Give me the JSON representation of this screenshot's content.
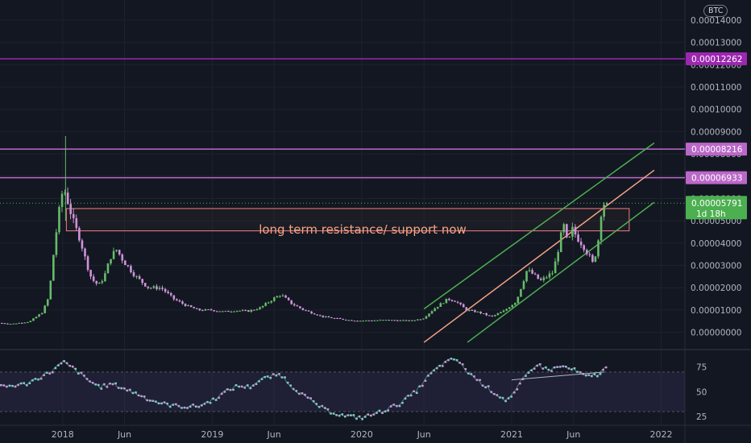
{
  "header": {
    "currency": "BTC"
  },
  "colors": {
    "background": "#131722",
    "grid": "#1e222d",
    "up": "#66bb6a",
    "down": "#ce93d8",
    "purple_line": "#9c27b0",
    "violet_line": "#ba68c8",
    "channel": "#4caf50",
    "midline": "#f4a383",
    "rsi_line": "#80cbc4"
  },
  "chart_data": [
    {
      "type": "candlestick",
      "title": "",
      "y_unit": "BTC",
      "ylim": [
        -7e-06,
        0.000149
      ],
      "x_range": [
        "2017-08-01",
        "2022-02-28"
      ],
      "y_ticks": [
        "0.00000000",
        "0.00001000",
        "0.00002000",
        "0.00003000",
        "0.00004000",
        "0.00005000",
        "0.00006000",
        "0.00007000",
        "0.00008000",
        "0.00009000",
        "0.00010000",
        "0.00011000",
        "0.00012000",
        "0.00013000",
        "0.00014000"
      ],
      "y_tick_values": [
        0,
        1e-05,
        2e-05,
        3e-05,
        4e-05,
        5e-05,
        6e-05,
        7e-05,
        8e-05,
        9e-05,
        0.0001,
        0.00011,
        0.00012,
        0.00013,
        0.00014
      ],
      "x_ticks": [
        {
          "label": "2018",
          "date": "2018-01-01"
        },
        {
          "label": "Jun",
          "date": "2018-06-01"
        },
        {
          "label": "2019",
          "date": "2019-01-01"
        },
        {
          "label": "Jun",
          "date": "2019-06-01"
        },
        {
          "label": "2020",
          "date": "2020-01-01"
        },
        {
          "label": "Jun",
          "date": "2020-06-01"
        },
        {
          "label": "2021",
          "date": "2021-01-01"
        },
        {
          "label": "Jun",
          "date": "2021-06-01"
        },
        {
          "label": "2022",
          "date": "2022-01-01"
        }
      ],
      "horizontal_levels": [
        {
          "value": 0.00012262,
          "label": "0.00012262",
          "color": "#9c27b0"
        },
        {
          "value": 8.216e-05,
          "label": "0.00008216",
          "color": "#ba68c8"
        },
        {
          "value": 6.933e-05,
          "label": "0.00006933",
          "color": "#ba68c8"
        }
      ],
      "last_price": {
        "value": 5.791e-05,
        "label": "0.00005791",
        "countdown": "1d 18h",
        "color": "#4caf50"
      },
      "zone": {
        "start": "2018-01-10",
        "end": "2021-10-15",
        "top": 5.55e-05,
        "bottom": 4.55e-05
      },
      "annotation": "long term resistance/ support now",
      "channel_lines": [
        {
          "name": "upper",
          "color": "#4caf50",
          "points": [
            [
              "2020-06-01",
              1.05e-05
            ],
            [
              "2021-12-15",
              8.49e-05
            ]
          ]
        },
        {
          "name": "middle",
          "color": "#f4a383",
          "points": [
            [
              "2020-06-01",
              -4.5e-06
            ],
            [
              "2021-12-15",
              7.27e-05
            ]
          ]
        },
        {
          "name": "lower",
          "color": "#4caf50",
          "points": [
            [
              "2020-09-15",
              -4.5e-06
            ],
            [
              "2021-12-15",
              5.83e-05
            ]
          ]
        }
      ],
      "price_path": [
        [
          "2017-08-01",
          4.2e-06
        ],
        [
          "2017-09-01",
          3.8e-06
        ],
        [
          "2017-10-15",
          4.8e-06
        ],
        [
          "2017-11-15",
          9e-06
        ],
        [
          "2017-12-01",
          1.6e-05
        ],
        [
          "2017-12-15",
          4e-05
        ],
        [
          "2018-01-01",
          6.2e-05
        ],
        [
          "2018-01-10",
          6.3e-05
        ],
        [
          "2018-01-20",
          5.6e-05
        ],
        [
          "2018-02-01",
          4.8e-05
        ],
        [
          "2018-02-15",
          4.2e-05
        ],
        [
          "2018-03-01",
          3.2e-05
        ],
        [
          "2018-03-15",
          2.4e-05
        ],
        [
          "2018-04-01",
          2.1e-05
        ],
        [
          "2018-04-15",
          2.5e-05
        ],
        [
          "2018-05-01",
          3.4e-05
        ],
        [
          "2018-05-15",
          3.7e-05
        ],
        [
          "2018-06-01",
          3.2e-05
        ],
        [
          "2018-07-01",
          2.5e-05
        ],
        [
          "2018-08-01",
          2e-05
        ],
        [
          "2018-09-01",
          2e-05
        ],
        [
          "2018-10-01",
          1.5e-05
        ],
        [
          "2018-11-01",
          1.2e-05
        ],
        [
          "2018-12-01",
          1e-05
        ],
        [
          "2019-01-01",
          1e-05
        ],
        [
          "2019-02-01",
          9.2e-06
        ],
        [
          "2019-03-01",
          9.8e-06
        ],
        [
          "2019-04-01",
          9.5e-06
        ],
        [
          "2019-05-01",
          1.1e-05
        ],
        [
          "2019-06-01",
          1.5e-05
        ],
        [
          "2019-06-20",
          1.7e-05
        ],
        [
          "2019-07-15",
          1.3e-05
        ],
        [
          "2019-08-15",
          1e-05
        ],
        [
          "2019-10-01",
          7e-06
        ],
        [
          "2019-12-01",
          5.5e-06
        ],
        [
          "2020-01-01",
          5.2e-06
        ],
        [
          "2020-03-01",
          5.5e-06
        ],
        [
          "2020-05-01",
          5.2e-06
        ],
        [
          "2020-06-01",
          6.2e-06
        ],
        [
          "2020-07-01",
          1.1e-05
        ],
        [
          "2020-08-01",
          1.5e-05
        ],
        [
          "2020-08-20",
          1.4e-05
        ],
        [
          "2020-09-15",
          1e-05
        ],
        [
          "2020-10-15",
          9e-06
        ],
        [
          "2020-11-15",
          7e-06
        ],
        [
          "2020-12-15",
          9.5e-06
        ],
        [
          "2021-01-15",
          1.4e-05
        ],
        [
          "2021-02-10",
          2.8e-05
        ],
        [
          "2021-02-25",
          2.6e-05
        ],
        [
          "2021-03-15",
          2.3e-05
        ],
        [
          "2021-04-15",
          2.7e-05
        ],
        [
          "2021-05-05",
          4.4e-05
        ],
        [
          "2021-05-12",
          4.8e-05
        ],
        [
          "2021-05-20",
          3.9e-05
        ],
        [
          "2021-06-01",
          4.6e-05
        ],
        [
          "2021-06-15",
          4.2e-05
        ],
        [
          "2021-07-01",
          3.8e-05
        ],
        [
          "2021-07-20",
          3.1e-05
        ],
        [
          "2021-08-01",
          3.8e-05
        ],
        [
          "2021-08-10",
          5.4e-05
        ],
        [
          "2021-08-17",
          5.79e-05
        ]
      ]
    },
    {
      "type": "line",
      "title": "",
      "ylim": [
        17,
        91
      ],
      "y_ticks": [
        25,
        50,
        75
      ],
      "band": [
        30,
        70
      ],
      "trendline": [
        [
          "2021-01-01",
          62
        ],
        [
          "2021-08-15",
          70
        ]
      ],
      "series": [
        {
          "name": "",
          "values": [
            [
              "2017-08-01",
              55
            ],
            [
              "2017-10-01",
              58
            ],
            [
              "2017-12-01",
              70
            ],
            [
              "2018-01-01",
              80
            ],
            [
              "2018-02-01",
              72
            ],
            [
              "2018-03-01",
              62
            ],
            [
              "2018-04-01",
              55
            ],
            [
              "2018-05-01",
              58
            ],
            [
              "2018-06-01",
              53
            ],
            [
              "2018-07-01",
              48
            ],
            [
              "2018-08-01",
              42
            ],
            [
              "2018-09-01",
              38
            ],
            [
              "2018-10-01",
              36
            ],
            [
              "2018-11-01",
              35
            ],
            [
              "2018-12-01",
              36
            ],
            [
              "2019-01-01",
              42
            ],
            [
              "2019-02-01",
              50
            ],
            [
              "2019-03-01",
              56
            ],
            [
              "2019-04-01",
              55
            ],
            [
              "2019-05-01",
              63
            ],
            [
              "2019-06-15",
              68
            ],
            [
              "2019-07-15",
              55
            ],
            [
              "2019-08-15",
              45
            ],
            [
              "2019-10-01",
              32
            ],
            [
              "2019-11-15",
              26
            ],
            [
              "2020-01-01",
              24
            ],
            [
              "2020-02-15",
              30
            ],
            [
              "2020-04-01",
              38
            ],
            [
              "2020-05-15",
              52
            ],
            [
              "2020-06-15",
              68
            ],
            [
              "2020-07-15",
              78
            ],
            [
              "2020-08-15",
              84
            ],
            [
              "2020-09-15",
              70
            ],
            [
              "2020-10-15",
              60
            ],
            [
              "2020-11-15",
              50
            ],
            [
              "2020-12-15",
              42
            ],
            [
              "2021-01-01",
              45
            ],
            [
              "2021-02-01",
              65
            ],
            [
              "2021-03-01",
              78
            ],
            [
              "2021-04-01",
              72
            ],
            [
              "2021-05-01",
              76
            ],
            [
              "2021-06-01",
              72
            ],
            [
              "2021-07-01",
              65
            ],
            [
              "2021-08-01",
              68
            ],
            [
              "2021-08-17",
              74
            ]
          ]
        }
      ]
    }
  ]
}
